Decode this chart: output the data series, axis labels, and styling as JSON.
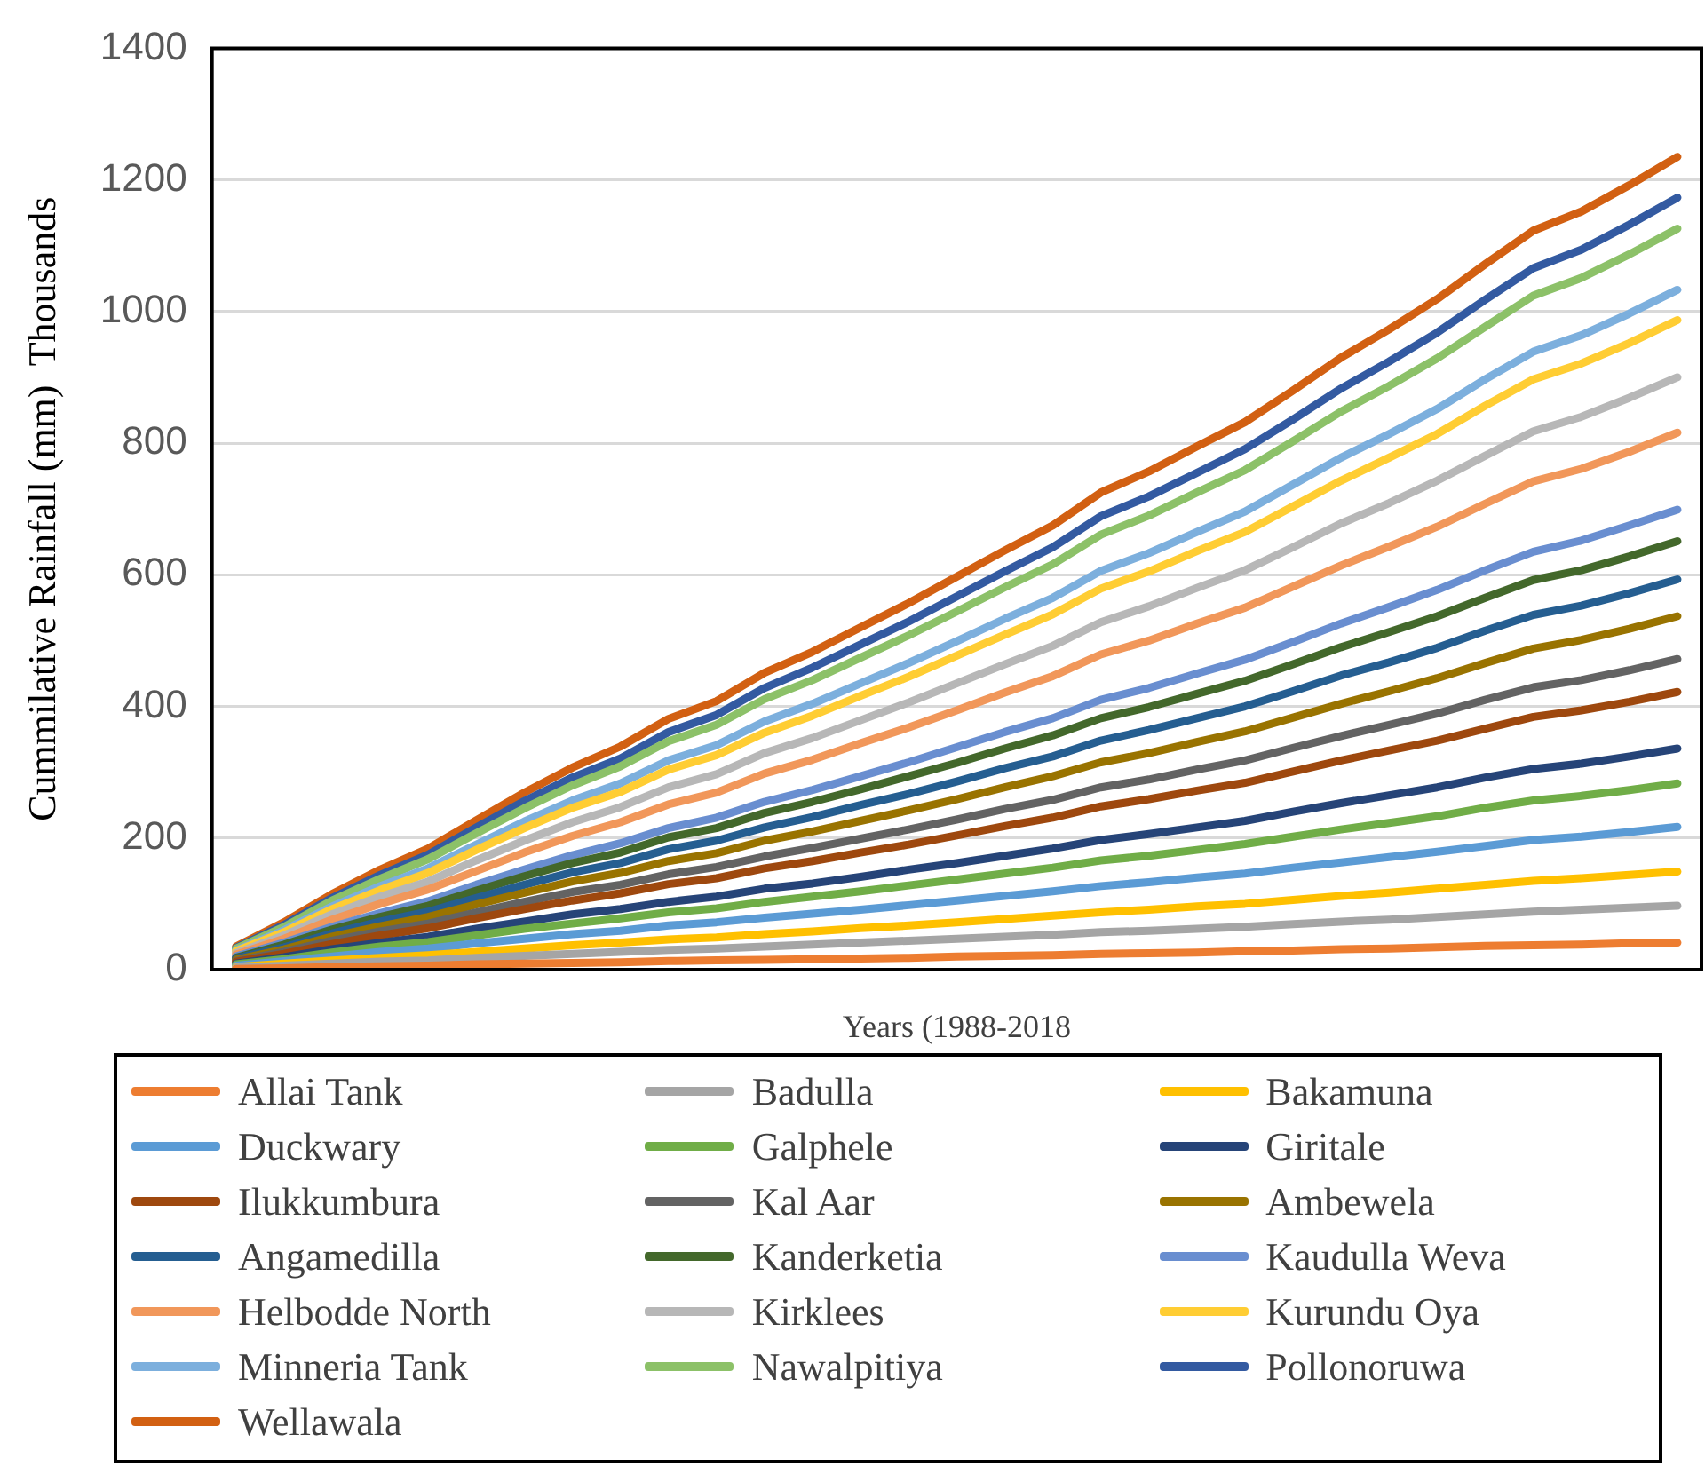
{
  "chart_data": {
    "type": "line",
    "xlabel": "Years (1988-2018",
    "ylabel": "Cummilative Rainfall (mm)  Thousands",
    "categories": [
      null,
      null,
      null,
      null,
      null,
      null,
      null,
      null,
      null,
      null,
      null,
      null,
      null,
      null,
      null,
      null,
      null,
      null,
      null,
      null,
      null,
      null,
      null,
      null,
      null,
      null,
      null,
      null,
      null,
      null,
      null
    ],
    "ylim": [
      0,
      1400
    ],
    "yticks": [
      0,
      200,
      400,
      600,
      800,
      1000,
      1200,
      1400
    ],
    "grid": "y",
    "legend": "bottom",
    "marker": "none",
    "line_style": "solid",
    "series": [
      {
        "name": "Allai Tank",
        "color": "#ed7d31",
        "values": [
          1,
          2,
          4,
          5,
          6,
          8,
          9,
          10,
          11,
          13,
          14,
          15,
          16,
          17,
          18,
          20,
          21,
          22,
          24,
          25,
          26,
          28,
          29,
          31,
          32,
          34,
          36,
          37,
          38,
          40,
          41
        ]
      },
      {
        "name": "Badulla",
        "color": "#a5a5a5",
        "values": [
          3,
          6,
          9,
          12,
          14,
          18,
          21,
          24,
          27,
          30,
          32,
          35,
          38,
          41,
          44,
          47,
          50,
          53,
          57,
          59,
          62,
          65,
          69,
          73,
          76,
          80,
          84,
          88,
          91,
          94,
          97
        ]
      },
      {
        "name": "Bakamuna",
        "color": "#ffc000",
        "values": [
          4,
          9,
          14,
          18,
          22,
          27,
          32,
          37,
          41,
          46,
          49,
          54,
          58,
          63,
          67,
          72,
          77,
          82,
          87,
          91,
          96,
          100,
          106,
          112,
          117,
          123,
          129,
          135,
          139,
          144,
          149
        ]
      },
      {
        "name": "Duckwary",
        "color": "#5b9bd5",
        "values": [
          6,
          13,
          20,
          27,
          32,
          40,
          47,
          54,
          59,
          67,
          72,
          79,
          85,
          91,
          98,
          105,
          112,
          119,
          127,
          133,
          140,
          146,
          155,
          163,
          171,
          179,
          188,
          197,
          202,
          209,
          217
        ]
      },
      {
        "name": "Galphele",
        "color": "#70ad47",
        "values": [
          8,
          16,
          26,
          35,
          42,
          52,
          62,
          70,
          78,
          87,
          93,
          103,
          111,
          119,
          128,
          137,
          146,
          155,
          166,
          173,
          182,
          191,
          202,
          213,
          223,
          233,
          246,
          257,
          264,
          273,
          283
        ]
      },
      {
        "name": "Giritale",
        "color": "#264478",
        "values": [
          9,
          19,
          31,
          41,
          50,
          62,
          73,
          84,
          92,
          103,
          111,
          123,
          131,
          141,
          152,
          162,
          173,
          184,
          197,
          206,
          216,
          226,
          240,
          253,
          265,
          277,
          292,
          305,
          313,
          324,
          336
        ]
      },
      {
        "name": "Ilukkumbura",
        "color": "#9e480e",
        "values": [
          12,
          24,
          39,
          52,
          63,
          78,
          92,
          105,
          116,
          130,
          139,
          154,
          165,
          178,
          190,
          204,
          218,
          231,
          248,
          259,
          272,
          284,
          301,
          318,
          333,
          348,
          366,
          384,
          394,
          407,
          422
        ]
      },
      {
        "name": "Kal Aar",
        "color": "#636363",
        "values": [
          13,
          27,
          44,
          58,
          70,
          87,
          103,
          118,
          129,
          145,
          156,
          172,
          185,
          199,
          213,
          228,
          244,
          258,
          277,
          289,
          304,
          318,
          337,
          355,
          372,
          389,
          410,
          429,
          440,
          455,
          472
        ]
      },
      {
        "name": "Ambewela",
        "color": "#997300",
        "values": [
          15,
          31,
          50,
          66,
          80,
          99,
          117,
          134,
          147,
          165,
          177,
          196,
          210,
          226,
          242,
          259,
          277,
          294,
          315,
          329,
          346,
          362,
          383,
          404,
          423,
          443,
          466,
          488,
          501,
          518,
          537
        ]
      },
      {
        "name": "Angamedilla",
        "color": "#255e91",
        "values": [
          17,
          34,
          55,
          73,
          88,
          109,
          129,
          148,
          162,
          183,
          196,
          216,
          232,
          250,
          267,
          286,
          306,
          324,
          348,
          364,
          382,
          400,
          423,
          447,
          467,
          489,
          515,
          539,
          553,
          572,
          593
        ]
      },
      {
        "name": "Kanderketia",
        "color": "#43682b",
        "values": [
          18,
          38,
          61,
          80,
          97,
          120,
          142,
          162,
          178,
          201,
          215,
          238,
          255,
          274,
          294,
          314,
          336,
          356,
          382,
          399,
          419,
          439,
          464,
          490,
          513,
          537,
          565,
          592,
          607,
          628,
          651
        ]
      },
      {
        "name": "Kaudulla Weva",
        "color": "#698ed0",
        "values": [
          20,
          41,
          65,
          86,
          104,
          129,
          152,
          174,
          192,
          215,
          231,
          255,
          273,
          294,
          315,
          338,
          361,
          382,
          410,
          428,
          450,
          471,
          498,
          526,
          551,
          577,
          607,
          635,
          652,
          675,
          699
        ]
      },
      {
        "name": "Helbodde North",
        "color": "#f1975a",
        "values": [
          23,
          47,
          76,
          100,
          122,
          150,
          178,
          203,
          224,
          251,
          269,
          298,
          319,
          344,
          368,
          394,
          421,
          446,
          479,
          500,
          526,
          550,
          582,
          614,
          643,
          673,
          708,
          742,
          761,
          787,
          816
        ]
      },
      {
        "name": "Kirklees",
        "color": "#b7b7b7",
        "values": [
          25,
          52,
          84,
          111,
          134,
          166,
          196,
          224,
          247,
          277,
          297,
          329,
          352,
          379,
          406,
          435,
          464,
          492,
          528,
          552,
          580,
          607,
          642,
          678,
          709,
          743,
          781,
          818,
          840,
          869,
          900
        ]
      },
      {
        "name": "Kurundu Oya",
        "color": "#ffcd33",
        "values": [
          28,
          57,
          92,
          121,
          147,
          182,
          215,
          246,
          270,
          304,
          326,
          360,
          386,
          416,
          445,
          477,
          509,
          540,
          579,
          605,
          636,
          665,
          704,
          743,
          778,
          814,
          857,
          897,
          921,
          952,
          987
        ]
      },
      {
        "name": "Minneria Tank",
        "color": "#7cafdd",
        "values": [
          29,
          60,
          96,
          127,
          154,
          190,
          225,
          257,
          283,
          318,
          341,
          377,
          404,
          435,
          466,
          499,
          533,
          565,
          606,
          633,
          665,
          696,
          737,
          778,
          814,
          852,
          897,
          939,
          964,
          997,
          1033
        ]
      },
      {
        "name": "Nawalpitiya",
        "color": "#8cc168",
        "values": [
          32,
          65,
          105,
          138,
          168,
          207,
          245,
          280,
          309,
          347,
          372,
          411,
          440,
          474,
          508,
          544,
          581,
          616,
          661,
          690,
          725,
          759,
          803,
          848,
          887,
          929,
          977,
          1024,
          1051,
          1087,
          1126
        ]
      },
      {
        "name": "Pollonoruwa",
        "color": "#335aa1",
        "values": [
          33,
          68,
          109,
          144,
          175,
          216,
          256,
          292,
          321,
          361,
          387,
          428,
          459,
          494,
          529,
          567,
          605,
          642,
          689,
          719,
          755,
          791,
          836,
          883,
          924,
          968,
          1018,
          1066,
          1094,
          1132,
          1173
        ]
      },
      {
        "name": "Wellawala",
        "color": "#d26012",
        "values": [
          35,
          72,
          115,
          152,
          184,
          227,
          269,
          307,
          339,
          381,
          408,
          451,
          483,
          520,
          557,
          597,
          637,
          675,
          725,
          757,
          795,
          832,
          880,
          930,
          973,
          1019,
          1072,
          1123,
          1152,
          1192,
          1235
        ]
      }
    ]
  }
}
